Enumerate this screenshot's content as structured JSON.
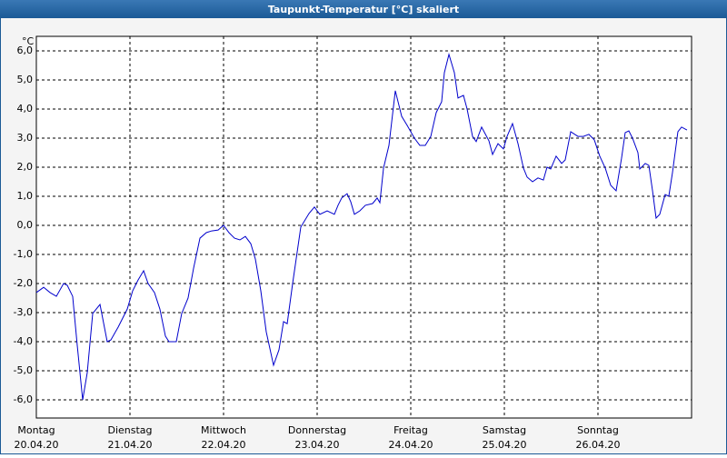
{
  "chart_data": {
    "type": "line",
    "title": "Taupunkt-Temperatur [°C] skaliert",
    "y_label": "°C",
    "color": "#0000cc",
    "grid": true,
    "xlim": [
      0,
      7
    ],
    "ylim": [
      -6.625,
      6.5
    ],
    "xticks": [
      {
        "value": 0,
        "label": "Montag",
        "date": "20.04.20"
      },
      {
        "value": 1,
        "label": "Dienstag",
        "date": "21.04.20"
      },
      {
        "value": 2,
        "label": "Mittwoch",
        "date": "22.04.20"
      },
      {
        "value": 3,
        "label": "Donnerstag",
        "date": "23.04.20"
      },
      {
        "value": 4,
        "label": "Freitag",
        "date": "24.04.20"
      },
      {
        "value": 5,
        "label": "Samstag",
        "date": "25.04.20"
      },
      {
        "value": 6,
        "label": "Sonntag",
        "date": "26.04.20"
      }
    ],
    "yticks": [
      {
        "value": 6,
        "label": "6,0"
      },
      {
        "value": 5,
        "label": "5,0"
      },
      {
        "value": 4,
        "label": "4,0"
      },
      {
        "value": 3,
        "label": "3,0"
      },
      {
        "value": 2,
        "label": "2,0"
      },
      {
        "value": 1,
        "label": "1,0"
      },
      {
        "value": 0,
        "label": "0,0"
      },
      {
        "value": -1,
        "label": "-1,0"
      },
      {
        "value": -2,
        "label": "-2,0"
      },
      {
        "value": -3,
        "label": "-3,0"
      },
      {
        "value": -4,
        "label": "-4,0"
      },
      {
        "value": -5,
        "label": "-5,0"
      },
      {
        "value": -6,
        "label": "-6,0"
      }
    ],
    "x": [
      0,
      0.078,
      0.146,
      0.214,
      0.291,
      0.33,
      0.388,
      0.437,
      0.495,
      0.544,
      0.602,
      0.68,
      0.757,
      0.796,
      0.874,
      0.971,
      1.029,
      1.087,
      1.146,
      1.194,
      1.262,
      1.32,
      1.379,
      1.417,
      1.495,
      1.553,
      1.621,
      1.68,
      1.748,
      1.816,
      1.874,
      1.942,
      2.0,
      2.058,
      2.117,
      2.175,
      2.233,
      2.291,
      2.34,
      2.398,
      2.456,
      2.534,
      2.592,
      2.641,
      2.68,
      2.738,
      2.825,
      2.913,
      2.971,
      3.0,
      3.029,
      3.107,
      3.184,
      3.223,
      3.262,
      3.32,
      3.359,
      3.398,
      3.456,
      3.515,
      3.592,
      3.641,
      3.67,
      3.709,
      3.767,
      3.835,
      3.903,
      3.961,
      4.039,
      4.097,
      4.155,
      4.214,
      4.272,
      4.33,
      4.359,
      4.408,
      4.466,
      4.505,
      4.563,
      4.602,
      4.66,
      4.699,
      4.757,
      4.835,
      4.874,
      4.932,
      4.99,
      5.029,
      5.087,
      5.146,
      5.204,
      5.243,
      5.301,
      5.359,
      5.417,
      5.456,
      5.495,
      5.553,
      5.612,
      5.65,
      5.709,
      5.786,
      5.845,
      5.903,
      5.961,
      6.019,
      6.078,
      6.136,
      6.194,
      6.252,
      6.291,
      6.33,
      6.369,
      6.427,
      6.447,
      6.505,
      6.544,
      6.583,
      6.621,
      6.66,
      6.718,
      6.757,
      6.796,
      6.854,
      6.893,
      6.951
    ],
    "values": [
      -2.31,
      -2.13,
      -2.31,
      -2.44,
      -2.0,
      -2.06,
      -2.44,
      -4.13,
      -6.0,
      -5.06,
      -3.03,
      -2.72,
      -4.0,
      -3.94,
      -3.5,
      -2.88,
      -2.25,
      -1.88,
      -1.56,
      -2.0,
      -2.31,
      -2.88,
      -3.81,
      -4.0,
      -4.0,
      -3.03,
      -2.5,
      -1.47,
      -0.44,
      -0.25,
      -0.19,
      -0.16,
      0,
      -0.25,
      -0.44,
      -0.5,
      -0.38,
      -0.63,
      -1.16,
      -2.25,
      -3.66,
      -4.81,
      -4.28,
      -3.31,
      -3.38,
      -2.0,
      -0.06,
      0.41,
      0.63,
      0.5,
      0.38,
      0.5,
      0.38,
      0.69,
      0.94,
      1.09,
      0.81,
      0.38,
      0.5,
      0.69,
      0.75,
      0.94,
      0.78,
      1.97,
      2.75,
      4.63,
      3.75,
      3.44,
      3.0,
      2.75,
      2.75,
      3.06,
      3.88,
      4.25,
      5.25,
      5.88,
      5.25,
      4.38,
      4.47,
      4.0,
      3.06,
      2.88,
      3.38,
      2.91,
      2.44,
      2.81,
      2.63,
      3.06,
      3.5,
      2.81,
      1.97,
      1.66,
      1.5,
      1.63,
      1.56,
      2.0,
      1.94,
      2.38,
      2.13,
      2.25,
      3.22,
      3.06,
      3.06,
      3.13,
      2.94,
      2.38,
      1.97,
      1.38,
      1.19,
      2.31,
      3.19,
      3.25,
      3.0,
      2.5,
      1.94,
      2.13,
      2.06,
      1.19,
      0.25,
      0.38,
      1.06,
      1.0,
      1.81,
      3.22,
      3.38,
      3.28
    ]
  }
}
